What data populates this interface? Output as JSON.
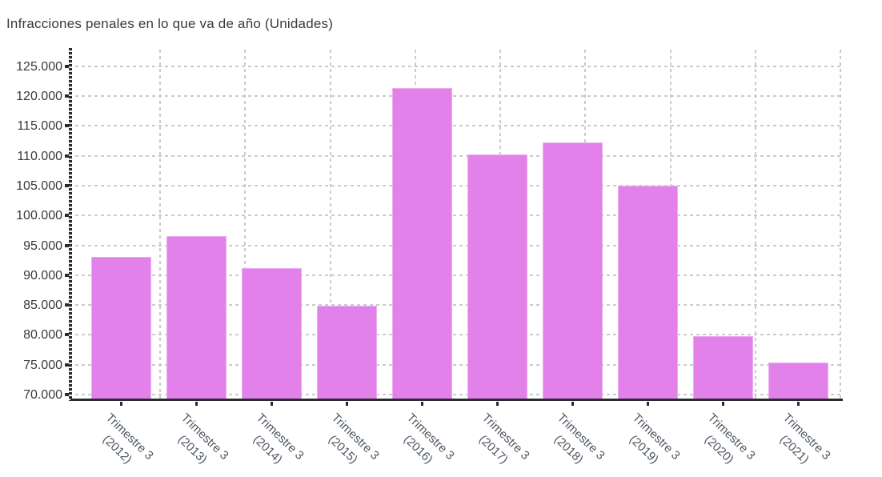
{
  "title": "Infracciones penales en lo que va de año (Unidades)",
  "chart_data": {
    "type": "bar",
    "title": "Infracciones penales en lo que va de año (Unidades)",
    "categories": [
      "Trimestre 3 (2012)",
      "Trimestre 3 (2013)",
      "Trimestre 3 (2014)",
      "Trimestre 3 (2015)",
      "Trimestre 3 (2016)",
      "Trimestre 3 (2017)",
      "Trimestre 3 (2018)",
      "Trimestre 3 (2019)",
      "Trimestre 3 (2020)",
      "Trimestre 3 (2021)"
    ],
    "values": [
      93000,
      96500,
      91200,
      84900,
      121300,
      110200,
      112200,
      105000,
      79800,
      75400
    ],
    "xlabel": "",
    "ylabel": "",
    "ylim": [
      69060,
      127780
    ],
    "yticks": [
      70000,
      75000,
      80000,
      85000,
      90000,
      95000,
      100000,
      105000,
      110000,
      115000,
      120000,
      125000
    ],
    "ytick_labels": [
      "70.000",
      "75.000",
      "80.000",
      "85.000",
      "90.000",
      "95.000",
      "100.000",
      "105.000",
      "110.000",
      "115.000",
      "120.000",
      "125.000"
    ],
    "grid": true,
    "legend": false,
    "bar_color": "#e281e9",
    "grid_color": "#cbcbcb",
    "axis_color": "#262c33",
    "title_color": "#3a3a3a",
    "ytick_color": "#3a3a3a",
    "xtick_color": "#4d5560"
  }
}
